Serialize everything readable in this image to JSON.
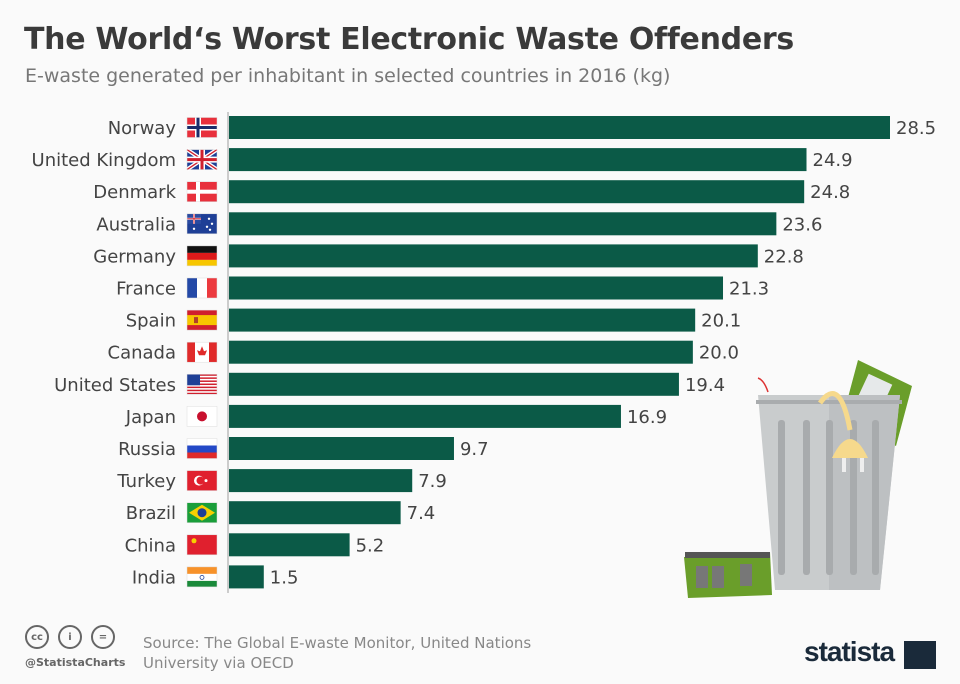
{
  "chart_data": {
    "type": "bar",
    "orientation": "horizontal",
    "title": "The World‘s Worst Electronic Waste Offenders",
    "subtitle": "E-waste generated per inhabitant in selected countries in 2016 (kg)",
    "categories": [
      "Norway",
      "United Kingdom",
      "Denmark",
      "Australia",
      "Germany",
      "France",
      "Spain",
      "Canada",
      "United States",
      "Japan",
      "Russia",
      "Turkey",
      "Brazil",
      "China",
      "India"
    ],
    "values": [
      28.5,
      24.9,
      24.8,
      23.6,
      22.8,
      21.3,
      20.1,
      20.0,
      19.4,
      16.9,
      9.7,
      7.9,
      7.4,
      5.2,
      1.5
    ],
    "value_labels": [
      "28.5",
      "24.9",
      "24.8",
      "23.6",
      "22.8",
      "21.3",
      "20.1",
      "20.0",
      "19.4",
      "16.9",
      "9.7",
      "7.9",
      "7.4",
      "5.2",
      "1.5"
    ],
    "xlim": [
      0,
      28.5
    ],
    "grid": false,
    "bar_color": "#0b5a47",
    "flags": [
      "norway-flag",
      "uk-flag",
      "denmark-flag",
      "australia-flag",
      "germany-flag",
      "france-flag",
      "spain-flag",
      "canada-flag",
      "usa-flag",
      "japan-flag",
      "russia-flag",
      "turkey-flag",
      "brazil-flag",
      "china-flag",
      "india-flag"
    ]
  },
  "footer": {
    "source_line1": "Source: The Global E-waste Monitor, United Nations",
    "source_line2": "University via OECD",
    "handle": "@StatistaCharts",
    "logo": "statista",
    "cc_icons": [
      "cc-icon",
      "by-icon",
      "nd-icon"
    ]
  }
}
